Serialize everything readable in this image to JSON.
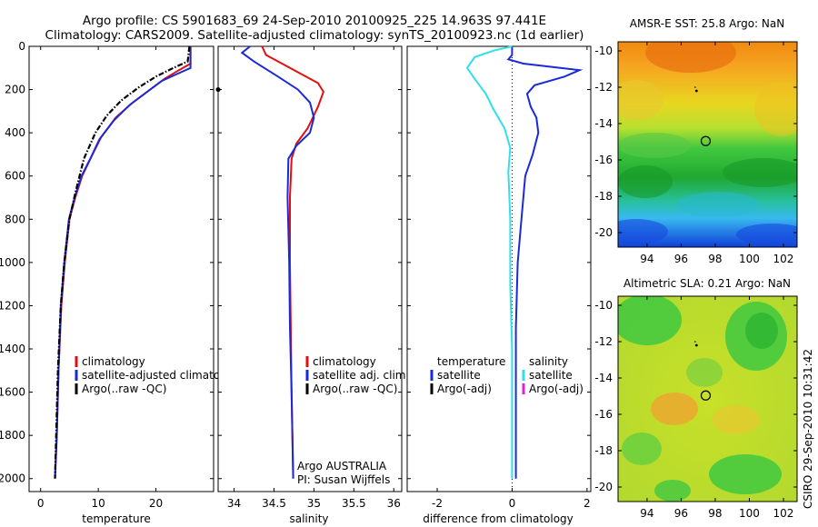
{
  "header": {
    "line1": "Argo profile: CS 5901683_69 24-Sep-2010 20100925_225 14.963S 97.441E",
    "line2": "Climatology: CARS2009. Satellite-adjusted climatology: synTS_20100923.nc (1d earlier)"
  },
  "footer_stamp": "CSIRO 29-Sep-2010 10:31:42",
  "colors": {
    "climatology": "#e01010",
    "satellite": "#1a2ad8",
    "argo": "#000000",
    "diff_temp_satellite": "#1a2ad8",
    "diff_sal_satellite": "#30e0e8",
    "diff_sal_argo": "#e020e0"
  },
  "chart_data": [
    {
      "type": "line",
      "id": "temperature",
      "xlabel": "temperature",
      "ylabel": "",
      "xlim": [
        -2,
        30
      ],
      "ylim": [
        2060,
        0
      ],
      "xticks": [
        0,
        10,
        20
      ],
      "yticks": [
        0,
        200,
        400,
        600,
        800,
        1000,
        1200,
        1400,
        1600,
        1800,
        2000
      ],
      "series": [
        {
          "name": "climatology",
          "color": "#e01010",
          "style": "solid",
          "x": [
            26.0,
            26.0,
            24.0,
            21.5,
            19.0,
            16.0,
            13.0,
            10.5,
            9.0,
            7.2,
            6.0,
            5.0,
            4.2,
            3.6,
            3.1,
            2.8,
            2.5
          ],
          "y": [
            0,
            80,
            110,
            150,
            200,
            260,
            330,
            420,
            500,
            600,
            700,
            800,
            1000,
            1200,
            1500,
            1800,
            2000
          ]
        },
        {
          "name": "satellite-adjusted climatology",
          "color": "#1a2ad8",
          "style": "solid",
          "x": [
            26.0,
            26.0,
            23.5,
            21.0,
            18.5,
            15.5,
            12.8,
            10.2,
            8.8,
            7.1,
            5.9,
            4.9,
            4.1,
            3.5,
            3.1,
            2.8,
            2.5
          ],
          "y": [
            0,
            100,
            130,
            160,
            210,
            270,
            340,
            430,
            510,
            600,
            700,
            800,
            1000,
            1200,
            1500,
            1800,
            2000
          ]
        },
        {
          "name": "Argo(..raw -QC)",
          "color": "#000000",
          "style": "dashdot",
          "x": [
            25.8,
            25.5,
            23.0,
            20.0,
            17.0,
            14.0,
            11.5,
            9.5,
            7.5,
            6.0,
            5.0,
            4.1,
            3.5,
            3.0,
            2.7,
            2.5
          ],
          "y": [
            0,
            70,
            100,
            140,
            190,
            250,
            320,
            400,
            520,
            680,
            800,
            1000,
            1200,
            1500,
            1800,
            2000
          ]
        }
      ],
      "legend": [
        "climatology",
        "satellite-adjusted climatology",
        "Argo(..raw -QC)"
      ]
    },
    {
      "type": "line",
      "id": "salinity",
      "xlabel": "salinity",
      "xlim": [
        33.8,
        36.1
      ],
      "ylim": [
        2060,
        0
      ],
      "xticks": [
        34,
        34.5,
        35,
        35.5,
        36
      ],
      "series": [
        {
          "name": "climatology",
          "color": "#e01010",
          "style": "solid",
          "x": [
            34.35,
            34.4,
            34.6,
            34.85,
            35.05,
            35.12,
            35.05,
            34.92,
            34.78,
            34.72,
            34.7,
            34.7,
            34.71,
            34.72,
            34.73,
            34.74
          ],
          "y": [
            0,
            40,
            80,
            130,
            170,
            210,
            280,
            380,
            450,
            520,
            700,
            1000,
            1300,
            1600,
            1800,
            2000
          ]
        },
        {
          "name": "satellite adj. clim.",
          "color": "#1a2ad8",
          "style": "solid",
          "x": [
            34.2,
            34.1,
            34.25,
            34.55,
            34.8,
            34.95,
            35.0,
            34.95,
            34.78,
            34.68,
            34.67,
            34.69,
            34.7,
            34.72,
            34.73,
            34.74
          ],
          "y": [
            0,
            30,
            70,
            140,
            200,
            260,
            330,
            400,
            460,
            520,
            700,
            1000,
            1300,
            1600,
            1800,
            2000
          ]
        }
      ],
      "markers": [
        {
          "x": 33.8,
          "y": 200
        }
      ],
      "legend": [
        "climatology",
        "satellite adj. clim.",
        "Argo(..raw -QC)"
      ],
      "annotation_line1": "Argo AUSTRALIA",
      "annotation_line2": "PI: Susan Wijffels"
    },
    {
      "type": "line",
      "id": "difference",
      "xlabel": "difference from climatology",
      "xlim": [
        -2.8,
        2.1
      ],
      "ylim": [
        2060,
        0
      ],
      "xticks": [
        -2,
        0,
        2
      ],
      "series": [
        {
          "name": "temperature satellite",
          "color": "#1a2ad8",
          "style": "solid",
          "x": [
            0.0,
            0.0,
            -0.1,
            0.3,
            1.8,
            1.4,
            0.6,
            0.4,
            0.5,
            0.65,
            0.7,
            0.55,
            0.35,
            0.25,
            0.15,
            0.1,
            0.1,
            0.1,
            0.1
          ],
          "y": [
            0,
            40,
            60,
            80,
            110,
            140,
            180,
            220,
            280,
            330,
            400,
            500,
            600,
            800,
            1000,
            1300,
            1600,
            1800,
            2000
          ]
        },
        {
          "name": "salinity satellite",
          "color": "#30e0e8",
          "style": "solid",
          "x": [
            0.0,
            -0.5,
            -1.0,
            -1.2,
            -1.0,
            -0.7,
            -0.5,
            -0.2,
            -0.05,
            -0.1,
            -0.05,
            -0.05,
            0.0,
            0.0,
            0.0
          ],
          "y": [
            0,
            20,
            50,
            100,
            150,
            220,
            290,
            380,
            470,
            580,
            800,
            1100,
            1400,
            1700,
            2000
          ]
        }
      ],
      "zero_line": true,
      "legend_header_left": "temperature",
      "legend_header_right": "salinity",
      "legend_left": [
        "satellite",
        "Argo(-adj)"
      ],
      "legend_right": [
        "satellite",
        "Argo(-adj)"
      ]
    }
  ],
  "maps": [
    {
      "id": "sst",
      "title": "AMSR-E SST: 25.8 Argo: NaN",
      "xticks": [
        94,
        96,
        98,
        100,
        102
      ],
      "yticks": [
        -10,
        -12,
        -14,
        -16,
        -18,
        -20
      ],
      "xlim": [
        92.3,
        102.8
      ],
      "ylim": [
        -20.8,
        -9.5
      ],
      "argo_position": {
        "lon": 97.441,
        "lat": -14.963
      },
      "track_point": {
        "lon": 96.9,
        "lat": -12.2
      }
    },
    {
      "id": "sla",
      "title": "Altimetric SLA: 0.21 Argo: NaN",
      "xticks": [
        94,
        96,
        98,
        100,
        102
      ],
      "yticks": [
        -10,
        -12,
        -14,
        -16,
        -18,
        -20
      ],
      "xlim": [
        92.3,
        102.8
      ],
      "ylim": [
        -20.8,
        -9.5
      ],
      "argo_position": {
        "lon": 97.441,
        "lat": -14.963
      },
      "track_point": {
        "lon": 96.9,
        "lat": -12.2
      }
    }
  ]
}
